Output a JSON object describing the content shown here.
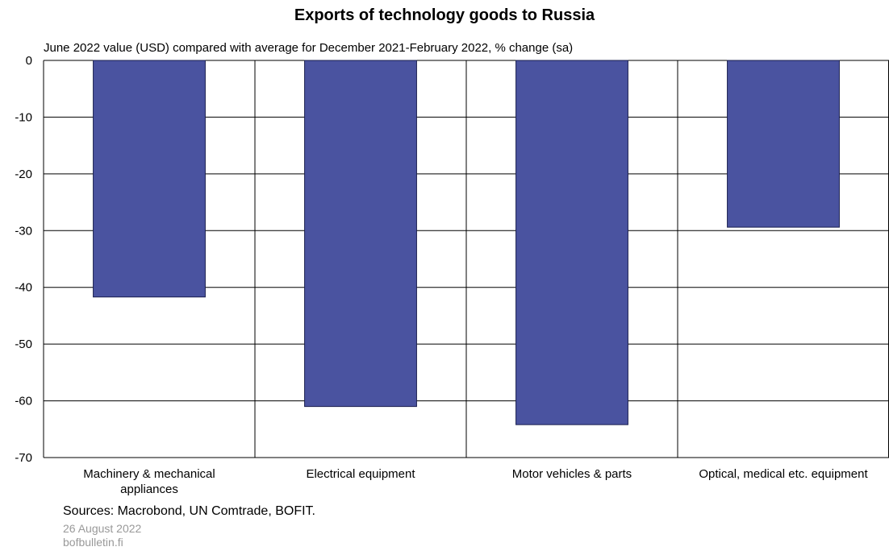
{
  "chart_data": {
    "type": "bar",
    "title": "Exports of technology goods to Russia",
    "subtitle": "June 2022 value (USD) compared with average for December 2021-February 2022, % change (sa)",
    "categories": [
      [
        "Machinery & mechanical",
        "appliances"
      ],
      [
        "Electrical equipment"
      ],
      [
        "Motor vehicles & parts"
      ],
      [
        "Optical, medical etc. equipment"
      ]
    ],
    "values": [
      -41.7,
      -61,
      -64.2,
      -29.4
    ],
    "ylim": [
      -70,
      0
    ],
    "yticks": [
      0,
      -10,
      -20,
      -30,
      -40,
      -50,
      -60,
      -70
    ],
    "grid": true,
    "bar_color": "#4a53a0",
    "xlabel": "",
    "ylabel": ""
  },
  "footer": {
    "sources": "Sources: Macrobond, UN Comtrade, BOFIT.",
    "date": "26 August 2022",
    "site": "bofbulletin.fi"
  }
}
